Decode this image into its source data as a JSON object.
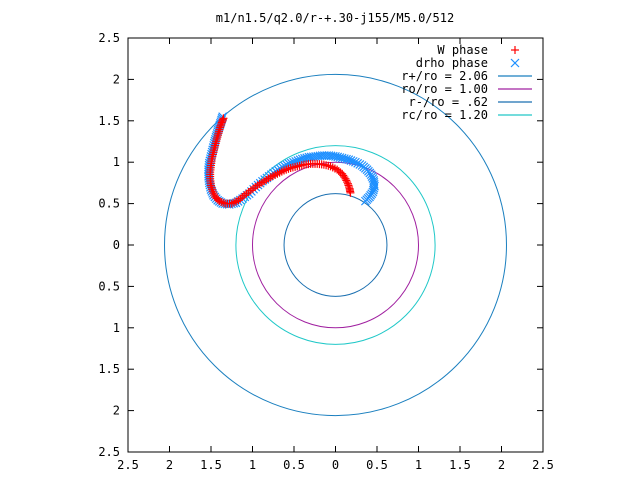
{
  "chart_data": {
    "type": "scatter",
    "title": "m1/n1.5/q2.0/r-+.30-j155/M5.0/512",
    "xlabel": "",
    "ylabel": "",
    "xlim": [
      -2.5,
      2.5
    ],
    "ylim": [
      -2.5,
      2.5
    ],
    "xticks": [
      -2.5,
      -2,
      -1.5,
      -1,
      -0.5,
      0,
      0.5,
      1,
      1.5,
      2,
      2.5
    ],
    "yticks": [
      -2.5,
      -2,
      -1.5,
      -1,
      -0.5,
      0,
      0.5,
      1,
      1.5,
      2,
      2.5
    ],
    "xtick_labels": [
      "2.5",
      "2",
      "1.5",
      "1",
      "0.5",
      "0",
      "0.5",
      "1",
      "1.5",
      "2",
      "2.5"
    ],
    "ytick_labels": [
      "2.5",
      "2",
      "1.5",
      "1",
      "0.5",
      "0",
      "0.5",
      "1",
      "1.5",
      "2",
      "2.5"
    ],
    "grid": false,
    "legend_position": "top-right",
    "series": [
      {
        "name": "W phase",
        "kind": "points",
        "marker": "plus",
        "color": "#ff0000",
        "points": [
          [
            -1.35,
            1.53
          ],
          [
            -1.37,
            1.48
          ],
          [
            -1.39,
            1.42
          ],
          [
            -1.41,
            1.35
          ],
          [
            -1.43,
            1.28
          ],
          [
            -1.45,
            1.2
          ],
          [
            -1.47,
            1.12
          ],
          [
            -1.49,
            1.04
          ],
          [
            -1.5,
            0.96
          ],
          [
            -1.51,
            0.88
          ],
          [
            -1.51,
            0.8
          ],
          [
            -1.5,
            0.72
          ],
          [
            -1.48,
            0.65
          ],
          [
            -1.45,
            0.58
          ],
          [
            -1.4,
            0.53
          ],
          [
            -1.33,
            0.5
          ],
          [
            -1.25,
            0.5
          ],
          [
            -1.17,
            0.54
          ],
          [
            -1.1,
            0.6
          ],
          [
            -1.02,
            0.66
          ],
          [
            -0.94,
            0.72
          ],
          [
            -0.86,
            0.77
          ],
          [
            -0.78,
            0.82
          ],
          [
            -0.7,
            0.86
          ],
          [
            -0.62,
            0.9
          ],
          [
            -0.54,
            0.93
          ],
          [
            -0.46,
            0.95
          ],
          [
            -0.38,
            0.97
          ],
          [
            -0.3,
            0.98
          ],
          [
            -0.22,
            0.98
          ],
          [
            -0.14,
            0.97
          ],
          [
            -0.06,
            0.95
          ],
          [
            0.02,
            0.91
          ],
          [
            0.08,
            0.86
          ],
          [
            0.12,
            0.8
          ],
          [
            0.15,
            0.74
          ],
          [
            0.17,
            0.68
          ],
          [
            0.18,
            0.63
          ]
        ]
      },
      {
        "name": "drho phase",
        "kind": "points",
        "marker": "cross",
        "color": "#1e90ff",
        "points": [
          [
            -1.36,
            1.55
          ],
          [
            -1.38,
            1.49
          ],
          [
            -1.4,
            1.43
          ],
          [
            -1.42,
            1.37
          ],
          [
            -1.44,
            1.3
          ],
          [
            -1.46,
            1.23
          ],
          [
            -1.48,
            1.15
          ],
          [
            -1.5,
            1.07
          ],
          [
            -1.52,
            0.99
          ],
          [
            -1.53,
            0.91
          ],
          [
            -1.53,
            0.83
          ],
          [
            -1.52,
            0.75
          ],
          [
            -1.5,
            0.67
          ],
          [
            -1.47,
            0.6
          ],
          [
            -1.42,
            0.54
          ],
          [
            -1.36,
            0.5
          ],
          [
            -1.28,
            0.49
          ],
          [
            -1.2,
            0.51
          ],
          [
            -1.12,
            0.56
          ],
          [
            -1.04,
            0.62
          ],
          [
            -0.96,
            0.7
          ],
          [
            -0.88,
            0.77
          ],
          [
            -0.8,
            0.83
          ],
          [
            -0.72,
            0.89
          ],
          [
            -0.64,
            0.94
          ],
          [
            -0.56,
            0.98
          ],
          [
            -0.48,
            1.01
          ],
          [
            -0.4,
            1.04
          ],
          [
            -0.32,
            1.06
          ],
          [
            -0.24,
            1.07
          ],
          [
            -0.16,
            1.08
          ],
          [
            -0.08,
            1.08
          ],
          [
            0.0,
            1.07
          ],
          [
            0.08,
            1.05
          ],
          [
            0.16,
            1.03
          ],
          [
            0.24,
            1.0
          ],
          [
            0.32,
            0.96
          ],
          [
            0.38,
            0.91
          ],
          [
            0.43,
            0.85
          ],
          [
            0.46,
            0.78
          ],
          [
            0.47,
            0.71
          ],
          [
            0.45,
            0.64
          ],
          [
            0.41,
            0.58
          ],
          [
            0.36,
            0.53
          ]
        ]
      },
      {
        "name": "r+/ro = 2.06",
        "kind": "circle",
        "radius": 2.06,
        "color": "#1a7fbf"
      },
      {
        "name": "ro/ro = 1.00",
        "kind": "circle",
        "radius": 1.0,
        "color": "#a020a0"
      },
      {
        "name": "r-/ro = .62",
        "kind": "circle",
        "radius": 0.62,
        "color": "#1a6fb0"
      },
      {
        "name": "rc/ro = 1.20",
        "kind": "circle",
        "radius": 1.2,
        "color": "#20c8c8"
      }
    ]
  }
}
